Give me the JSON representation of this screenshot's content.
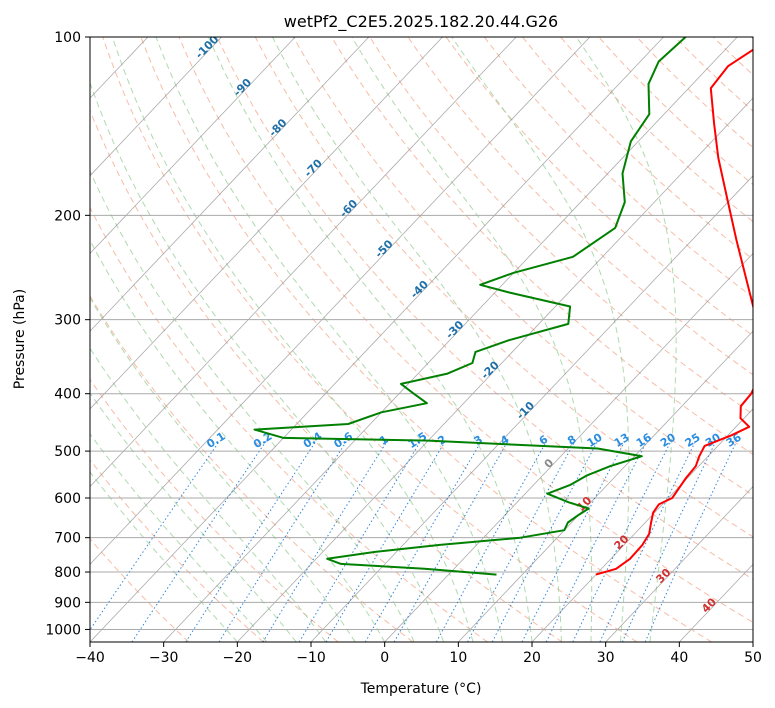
{
  "chart_data": {
    "type": "skew-t",
    "title": "wetPf2_C2E5.2025.182.20.44.G26",
    "xlabel": "Temperature (°C)",
    "ylabel": "Pressure (hPa)",
    "xlim": [
      -40,
      50
    ],
    "ylim": [
      1050,
      100
    ],
    "log_y": true,
    "x_ticks": [
      -40,
      -30,
      -20,
      -10,
      0,
      10,
      20,
      30,
      40,
      50
    ],
    "x_tick_labels": [
      "−40",
      "−30",
      "−20",
      "−10",
      "0",
      "10",
      "20",
      "30",
      "40",
      "50"
    ],
    "y_ticks": [
      1000,
      900,
      800,
      700,
      600,
      500,
      400,
      300,
      200,
      100
    ],
    "y_tick_labels": [
      "1000",
      "900",
      "800",
      "700",
      "600",
      "500",
      "400",
      "300",
      "200",
      "100"
    ],
    "temperature": {
      "color": "#ff0000",
      "points": [
        [
          808,
          20.0
        ],
        [
          790,
          22.0
        ],
        [
          760,
          22.6
        ],
        [
          720,
          22.5
        ],
        [
          690,
          22.0
        ],
        [
          660,
          20.8
        ],
        [
          635,
          19.8
        ],
        [
          615,
          19.5
        ],
        [
          600,
          20.5
        ],
        [
          580,
          20.2
        ],
        [
          555,
          19.8
        ],
        [
          530,
          19.6
        ],
        [
          510,
          18.8
        ],
        [
          490,
          18.2
        ],
        [
          470,
          20.5
        ],
        [
          455,
          21.8
        ],
        [
          440,
          19.5
        ],
        [
          420,
          18.0
        ],
        [
          400,
          17.8
        ],
        [
          370,
          16.5
        ],
        [
          340,
          14.0
        ],
        [
          300,
          9.0
        ],
        [
          260,
          3.0
        ],
        [
          220,
          -4.0
        ],
        [
          190,
          -10.0
        ],
        [
          160,
          -17.0
        ],
        [
          140,
          -22.0
        ],
        [
          122,
          -27.0
        ],
        [
          112,
          -27.5
        ],
        [
          104,
          -26.0
        ],
        [
          100,
          -25.0
        ]
      ]
    },
    "dewpoint": {
      "color": "#008000",
      "points": [
        [
          808,
          6.5
        ],
        [
          790,
          -4.0
        ],
        [
          775,
          -16.0
        ],
        [
          760,
          -18.5
        ],
        [
          740,
          -13.0
        ],
        [
          720,
          -5.0
        ],
        [
          700,
          5.0
        ],
        [
          680,
          10.0
        ],
        [
          660,
          9.5
        ],
        [
          640,
          10.0
        ],
        [
          625,
          10.5
        ],
        [
          610,
          7.0
        ],
        [
          590,
          3.0
        ],
        [
          570,
          5.0
        ],
        [
          550,
          6.0
        ],
        [
          530,
          8.0
        ],
        [
          510,
          11.0
        ],
        [
          495,
          4.0
        ],
        [
          480,
          -20.0
        ],
        [
          475,
          -40.0
        ],
        [
          460,
          -45.0
        ],
        [
          450,
          -33.0
        ],
        [
          430,
          -30.0
        ],
        [
          415,
          -25.0
        ],
        [
          400,
          -28.0
        ],
        [
          385,
          -31.0
        ],
        [
          370,
          -26.0
        ],
        [
          355,
          -24.0
        ],
        [
          340,
          -25.0
        ],
        [
          325,
          -22.0
        ],
        [
          305,
          -16.0
        ],
        [
          285,
          -18.0
        ],
        [
          270,
          -28.0
        ],
        [
          262,
          -33.0
        ],
        [
          250,
          -30.0
        ],
        [
          235,
          -24.0
        ],
        [
          210,
          -22.0
        ],
        [
          190,
          -24.0
        ],
        [
          170,
          -28.0
        ],
        [
          150,
          -31.0
        ],
        [
          135,
          -32.0
        ],
        [
          120,
          -36.0
        ],
        [
          110,
          -37.5
        ],
        [
          100,
          -37.0
        ]
      ]
    },
    "isotherm_labels": [
      "-100",
      "-90",
      "-80",
      "-70",
      "-60",
      "-50",
      "-40",
      "-30",
      "-20",
      "-10",
      "0",
      "10",
      "20",
      "30",
      "40"
    ],
    "isotherm_label_temps": [
      -100,
      -90,
      -80,
      -70,
      -60,
      -50,
      -40,
      -30,
      -20,
      -10,
      0,
      10,
      20,
      30,
      40
    ],
    "mixing_ratio_labels": [
      "0.1",
      "0.2",
      "0.4",
      "0.6",
      "1",
      "1.5",
      "2",
      "3",
      "4",
      "6",
      "8",
      "10",
      "13",
      "16",
      "20",
      "25",
      "30",
      "36"
    ],
    "mixing_ratio_values": [
      0.1,
      0.2,
      0.4,
      0.6,
      1,
      1.5,
      2,
      3,
      4,
      6,
      8,
      10,
      13,
      16,
      20,
      25,
      30,
      36
    ],
    "colors": {
      "isotherm": "#888888",
      "dry_adiabat": "#f4a58a",
      "moist_adiabat": "#9ccf9c",
      "mixing_ratio": "#1f7ad6",
      "grid": "#aaaaaa"
    }
  }
}
